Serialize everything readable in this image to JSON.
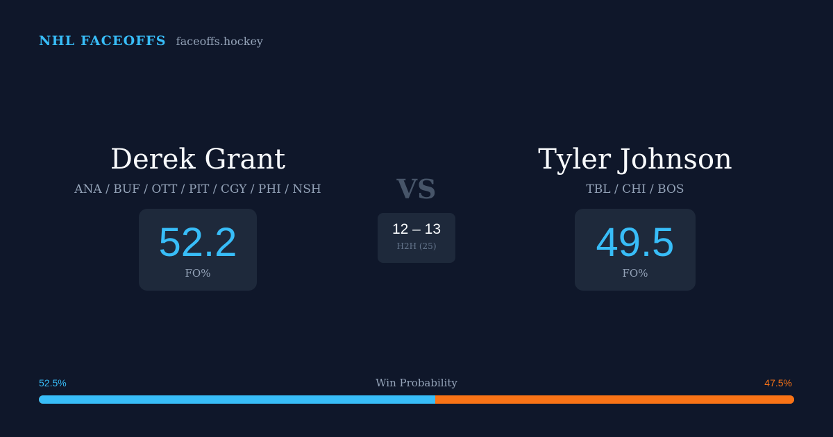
{
  "brand": {
    "title": "NHL FACEOFFS",
    "site": "faceoffs.hockey"
  },
  "players": [
    {
      "name": "Derek Grant",
      "teams": "ANA / BUF / OTT / PIT / CGY / PHI / NSH",
      "stat_value": "52.2",
      "stat_label": "FO%"
    },
    {
      "name": "Tyler Johnson",
      "teams": "TBL / CHI / BOS",
      "stat_value": "49.5",
      "stat_label": "FO%"
    }
  ],
  "vs_label": "VS",
  "h2h": {
    "score": "12 – 13",
    "label": "H2H (25)"
  },
  "win_probability": {
    "title": "Win Probability",
    "left_pct_text": "52.5%",
    "right_pct_text": "47.5%",
    "left_fraction": 0.525,
    "left_color": "#38bdf8",
    "right_color": "#f97316"
  },
  "colors": {
    "background": "#0f172a",
    "card": "#1e293b",
    "accent": "#38bdf8",
    "muted": "#94a3b8"
  }
}
